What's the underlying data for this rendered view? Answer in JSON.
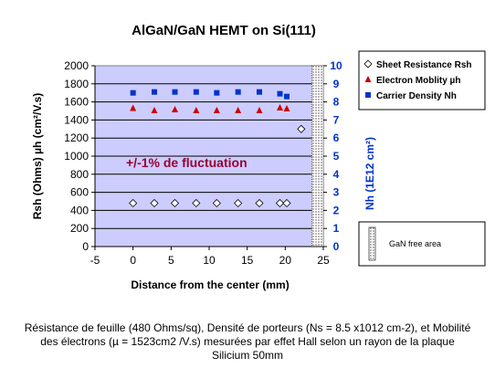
{
  "chart_data": {
    "type": "scatter",
    "title": "AlGaN/GaN HEMT on Si(111)",
    "xlabel": "Distance from the center (mm)",
    "ylabel_left": "Rsh (Ohms) µh (cm²/V.s)",
    "ylabel_right": "Nh (1E12 cm²)",
    "xlim": [
      -5,
      25
    ],
    "x_ticks": [
      "-5",
      "0",
      "5",
      "10",
      "15",
      "20",
      "25"
    ],
    "ylim_left": [
      0,
      2000
    ],
    "y_ticks_left": [
      "0",
      "200",
      "400",
      "600",
      "800",
      "1000",
      "1200",
      "1400",
      "1600",
      "1800",
      "2000"
    ],
    "ylim_right": [
      0,
      10
    ],
    "y_ticks_right": [
      "0",
      "1",
      "2",
      "3",
      "4",
      "5",
      "6",
      "7",
      "8",
      "9",
      "10"
    ],
    "annotation": "+/-1%  de fluctuation",
    "shaded_region_label": "GaN free area",
    "shaded_region_x": [
      23.5,
      25
    ],
    "legend_position": "right",
    "grid": "horizontal",
    "series": [
      {
        "name": "Sheet Resistance  Rsh",
        "marker": "diamond",
        "color": "#ffffff",
        "axis": "left",
        "points": [
          [
            0,
            480
          ],
          [
            2.8,
            480
          ],
          [
            5.5,
            480
          ],
          [
            8.3,
            480
          ],
          [
            11,
            480
          ],
          [
            13.8,
            480
          ],
          [
            16.6,
            480
          ],
          [
            19.3,
            480
          ],
          [
            20.2,
            480
          ],
          [
            22.1,
            1300
          ]
        ]
      },
      {
        "name": "Electron Moblity µh",
        "marker": "triangle",
        "color": "#cc0000",
        "axis": "left",
        "points": [
          [
            0,
            1530
          ],
          [
            2.8,
            1505
          ],
          [
            5.5,
            1515
          ],
          [
            8.3,
            1505
          ],
          [
            11,
            1505
          ],
          [
            13.8,
            1505
          ],
          [
            16.6,
            1505
          ],
          [
            19.3,
            1535
          ],
          [
            20.2,
            1525
          ]
        ]
      },
      {
        "name": "Carrier Density Nh",
        "marker": "square",
        "color": "#0033cc",
        "axis": "right",
        "points": [
          [
            0,
            8.5
          ],
          [
            2.8,
            8.55
          ],
          [
            5.5,
            8.55
          ],
          [
            8.3,
            8.55
          ],
          [
            11,
            8.5
          ],
          [
            13.8,
            8.55
          ],
          [
            16.6,
            8.55
          ],
          [
            19.3,
            8.45
          ],
          [
            20.2,
            8.3
          ]
        ]
      }
    ]
  },
  "caption": {
    "line1": "Résistance de feuille (480 Ohms/sq), Densité de porteurs (Ns = 8.5 x1012 cm-2), et Mobilité",
    "line2": "des électrons (µ = 1523cm2 /V.s) mesurées par effet Hall selon un rayon de la plaque",
    "line3": "Silicium 50mm"
  }
}
